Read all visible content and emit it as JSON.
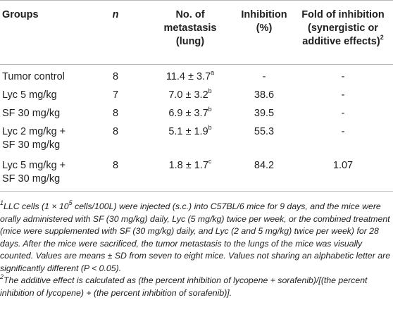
{
  "table": {
    "headers": {
      "groups": "Groups",
      "n": "n",
      "metastasis": [
        "No. of",
        "metastasis",
        "(lung)"
      ],
      "inhibition": [
        "Inhibition",
        "(%)"
      ],
      "fold": [
        "Fold of inhibition",
        "(synergistic or",
        "additive effects)"
      ],
      "fold_sup": "2"
    },
    "rows": [
      {
        "group": [
          "Tumor control"
        ],
        "n": "8",
        "mean": "11.4 ± 3.7",
        "letter": "a",
        "inhibition": "-",
        "fold": "-"
      },
      {
        "group": [
          "Lyc 5 mg/kg"
        ],
        "n": "7",
        "mean": "7.0 ± 3.2",
        "letter": "b",
        "inhibition": "38.6",
        "fold": "-"
      },
      {
        "group": [
          "SF 30 mg/kg"
        ],
        "n": "8",
        "mean": "6.9 ± 3.7",
        "letter": "b",
        "inhibition": "39.5",
        "fold": "-"
      },
      {
        "group": [
          "Lyc 2 mg/kg +",
          "SF 30 mg/kg"
        ],
        "n": "8",
        "mean": "5.1 ± 1.9",
        "letter": "b",
        "inhibition": "55.3",
        "fold": "-"
      },
      {
        "group": [
          "Lyc 5 mg/kg +",
          "SF 30 mg/kg"
        ],
        "n": "8",
        "mean": "1.8 ± 1.7",
        "letter": "c",
        "inhibition": "84.2",
        "fold": "1.07"
      }
    ]
  },
  "footnotes": {
    "note1_mark": "1",
    "note1_a": "LLC cells (1 × 10",
    "note1_exp": "5",
    "note1_b": " cells/100L) were injected (s.c.) into C57BL/6 mice for 9 days, and the mice were orally administered with SF (30 mg/kg) daily, Lyc (5 mg/kg) twice per week, or the combined treatment (mice were supplemented with SF (30 mg/kg) daily, and Lyc (2 and 5 mg/kg) twice per week) for 28 days. After the mice were sacrificed, the tumor metastasis to the lungs of the mice was visually counted. Values are means ± SD from seven to eight mice. Values not sharing an alphabetic letter are significantly different (P < 0.05).",
    "note2_mark": "2",
    "note2": "The additive effect is calculated as (the percent inhibition of lycopene + sorafenib)/[(the percent inhibition of lycopene) + (the percent inhibition of sorafenib)]."
  }
}
